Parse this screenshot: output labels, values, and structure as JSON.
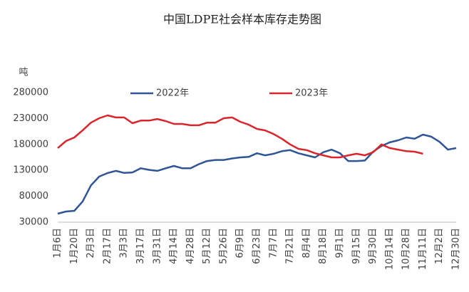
{
  "chart_data": {
    "type": "line",
    "title": "中国LDPE社会样本库存走势图",
    "y_label": "吨",
    "categories": [
      "1月6日",
      null,
      "1月20日",
      null,
      "2月3日",
      null,
      "2月17日",
      null,
      "3月3日",
      null,
      "3月17日",
      null,
      "3月31日",
      null,
      "4月14日",
      null,
      "4月28日",
      null,
      "5月12日",
      null,
      "5月26日",
      null,
      "6月9日",
      null,
      "6月23日",
      null,
      "7月7日",
      null,
      "7月21日",
      null,
      "8月4日",
      null,
      "8月18日",
      null,
      "9月1日",
      null,
      "9月15日",
      null,
      "9月30日",
      null,
      "10月14日",
      null,
      "10月28日",
      null,
      "11月11日",
      null,
      "12月2日",
      null,
      "12月30日"
    ],
    "series": [
      {
        "name": "2022年",
        "color": "#2f5597",
        "values": [
          46500,
          50600,
          52000,
          70000,
          101000,
          118000,
          124800,
          129000,
          125000,
          126000,
          134000,
          131000,
          129000,
          134000,
          138500,
          134000,
          134000,
          142000,
          148000,
          150000,
          150000,
          153000,
          155000,
          156000,
          163000,
          159000,
          162000,
          167000,
          169000,
          163000,
          159000,
          155000,
          165000,
          170000,
          163000,
          148000,
          148000,
          149000,
          166000,
          177000,
          184000,
          188000,
          193500,
          191000,
          199000,
          195000,
          185000,
          170000,
          173000
        ]
      },
      {
        "name": "2023年",
        "color": "#d9262c",
        "values": [
          173000,
          186600,
          193500,
          207000,
          222000,
          230500,
          236000,
          232000,
          232000,
          221000,
          226000,
          226000,
          229000,
          225000,
          219500,
          219500,
          217000,
          217000,
          222000,
          222000,
          230500,
          232000,
          223700,
          218000,
          210000,
          207000,
          200000,
          191000,
          180000,
          171500,
          169000,
          163000,
          159000,
          155000,
          155000,
          159000,
          162000,
          159000,
          165000,
          180000,
          173000,
          170000,
          167000,
          166000,
          162000,
          null,
          null,
          null,
          null
        ]
      }
    ],
    "ylim": [
      30000,
      280000
    ],
    "yticks": [
      30000,
      80000,
      130000,
      180000,
      230000,
      280000
    ],
    "legend": "top"
  }
}
